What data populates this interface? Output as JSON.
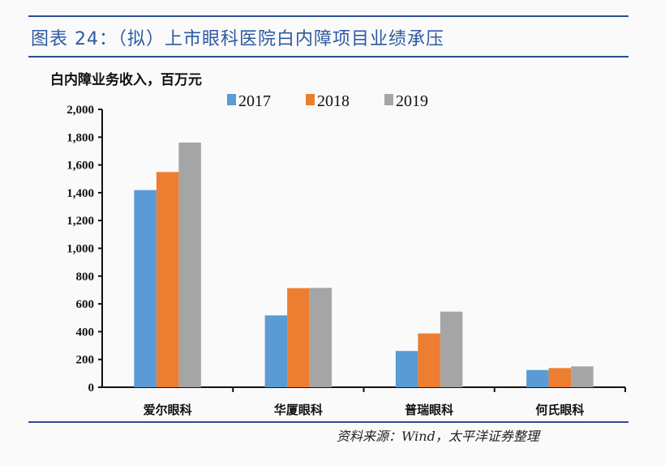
{
  "title": "图表 24：（拟）上市眼科医院白内障项目业绩承压",
  "source": "资料来源：Wind，太平洋证券整理",
  "chart_data": {
    "type": "bar",
    "title": "",
    "ylabel": "白内障业务收入，百万元",
    "xlabel": "",
    "ylim": [
      0,
      2000
    ],
    "yticks": [
      "0",
      "200",
      "400",
      "600",
      "800",
      "1,000",
      "1,200",
      "1,400",
      "1,600",
      "1,800",
      "2,000"
    ],
    "categories": [
      "爱尔眼科",
      "华厦眼科",
      "普瑞眼科",
      "何氏眼科"
    ],
    "series": [
      {
        "name": "2017",
        "color": "#5b9bd5",
        "values": [
          1419,
          517,
          261,
          124
        ]
      },
      {
        "name": "2018",
        "color": "#ed7d31",
        "values": [
          1549,
          713,
          387,
          138
        ]
      },
      {
        "name": "2019",
        "color": "#a5a5a5",
        "values": [
          1761,
          715,
          544,
          150
        ]
      }
    ],
    "legend_position": "top",
    "grid": false
  }
}
